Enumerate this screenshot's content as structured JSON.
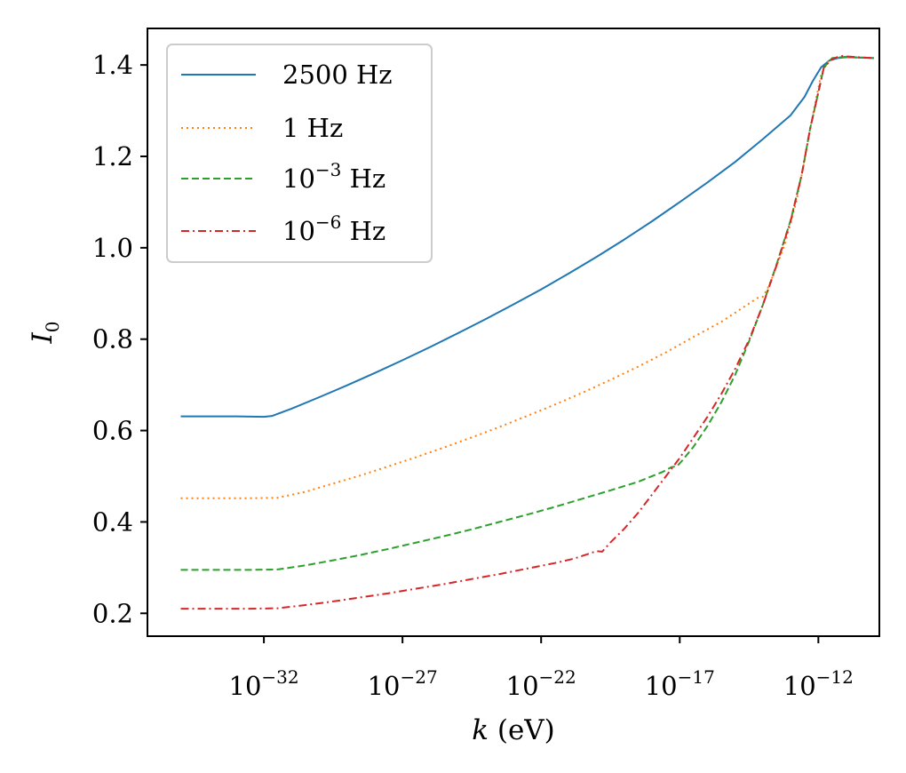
{
  "chart_data": {
    "type": "line",
    "title": "",
    "xlabel": "k (eV)",
    "ylabel": "I0",
    "xscale": "log",
    "x_exp_range": [
      -36.2,
      -9.8
    ],
    "ylim": [
      0.15,
      1.48
    ],
    "x_ticks": [
      {
        "exp": -32,
        "base": "10",
        "sup": "−32"
      },
      {
        "exp": -27,
        "base": "10",
        "sup": "−27"
      },
      {
        "exp": -22,
        "base": "10",
        "sup": "−22"
      },
      {
        "exp": -17,
        "base": "10",
        "sup": "−17"
      },
      {
        "exp": -12,
        "base": "10",
        "sup": "−12"
      }
    ],
    "y_ticks": [
      "0.2",
      "0.4",
      "0.6",
      "0.8",
      "1.0",
      "1.2",
      "1.4"
    ],
    "grid": false,
    "legend_position": "upper-left",
    "series": [
      {
        "name": "2500 Hz",
        "legend": {
          "base": "2500 Hz",
          "sup": "",
          "suffix": ""
        },
        "color": "#1f77b4",
        "dash": "solid",
        "points": [
          [
            -35,
            0.631
          ],
          [
            -33,
            0.631
          ],
          [
            -32,
            0.63
          ],
          [
            -31.7,
            0.632
          ],
          [
            -31,
            0.648
          ],
          [
            -30,
            0.673
          ],
          [
            -29,
            0.699
          ],
          [
            -28,
            0.726
          ],
          [
            -27,
            0.754
          ],
          [
            -26,
            0.783
          ],
          [
            -25,
            0.813
          ],
          [
            -24,
            0.844
          ],
          [
            -23,
            0.876
          ],
          [
            -22,
            0.909
          ],
          [
            -21,
            0.944
          ],
          [
            -20,
            0.98
          ],
          [
            -19,
            1.018
          ],
          [
            -18,
            1.058
          ],
          [
            -17,
            1.1
          ],
          [
            -16,
            1.143
          ],
          [
            -15,
            1.188
          ],
          [
            -14,
            1.238
          ],
          [
            -13,
            1.29
          ],
          [
            -12.5,
            1.33
          ],
          [
            -12.2,
            1.365
          ],
          [
            -11.9,
            1.395
          ],
          [
            -11.6,
            1.41
          ],
          [
            -11.3,
            1.415
          ],
          [
            -11,
            1.417
          ],
          [
            -10,
            1.415
          ]
        ]
      },
      {
        "name": "1 Hz",
        "legend": {
          "base": "1 Hz",
          "sup": "",
          "suffix": ""
        },
        "color": "#ff7f0e",
        "dash": "dotted",
        "points": [
          [
            -35,
            0.452
          ],
          [
            -32.5,
            0.452
          ],
          [
            -31.5,
            0.453
          ],
          [
            -30.5,
            0.466
          ],
          [
            -29.5,
            0.484
          ],
          [
            -28.5,
            0.502
          ],
          [
            -27.5,
            0.522
          ],
          [
            -26.5,
            0.542
          ],
          [
            -25.5,
            0.563
          ],
          [
            -24.5,
            0.585
          ],
          [
            -23.5,
            0.608
          ],
          [
            -22.5,
            0.632
          ],
          [
            -21.5,
            0.657
          ],
          [
            -20.5,
            0.683
          ],
          [
            -19.5,
            0.711
          ],
          [
            -18.5,
            0.74
          ],
          [
            -17.5,
            0.771
          ],
          [
            -16.5,
            0.805
          ],
          [
            -15.5,
            0.838
          ],
          [
            -15,
            0.858
          ],
          [
            -14.5,
            0.878
          ],
          [
            -14.2,
            0.89
          ],
          [
            -14.0,
            0.893
          ],
          [
            -13.8,
            0.915
          ],
          [
            -13.6,
            0.945
          ],
          [
            -13.2,
            1.01
          ],
          [
            -12.8,
            1.1
          ],
          [
            -12.5,
            1.19
          ],
          [
            -12.2,
            1.29
          ],
          [
            -11.9,
            1.38
          ],
          [
            -11.6,
            1.412
          ],
          [
            -11.2,
            1.418
          ],
          [
            -10.5,
            1.416
          ],
          [
            -10,
            1.415
          ]
        ]
      },
      {
        "name": "10^-3 Hz",
        "legend": {
          "base": "10",
          "sup": "−3",
          "suffix": " Hz"
        },
        "color": "#2ca02c",
        "dash": "dashed",
        "points": [
          [
            -35,
            0.295
          ],
          [
            -32.5,
            0.295
          ],
          [
            -31.5,
            0.296
          ],
          [
            -30.5,
            0.305
          ],
          [
            -29.5,
            0.316
          ],
          [
            -28.5,
            0.328
          ],
          [
            -27.5,
            0.341
          ],
          [
            -26.5,
            0.355
          ],
          [
            -25.5,
            0.369
          ],
          [
            -24.5,
            0.384
          ],
          [
            -23.5,
            0.4
          ],
          [
            -22.5,
            0.416
          ],
          [
            -21.5,
            0.433
          ],
          [
            -20.5,
            0.451
          ],
          [
            -19.5,
            0.469
          ],
          [
            -18.5,
            0.488
          ],
          [
            -17.6,
            0.51
          ],
          [
            -17.3,
            0.52
          ],
          [
            -17.1,
            0.522
          ],
          [
            -16.9,
            0.535
          ],
          [
            -16.5,
            0.565
          ],
          [
            -16,
            0.61
          ],
          [
            -15.5,
            0.662
          ],
          [
            -15,
            0.722
          ],
          [
            -14.5,
            0.795
          ],
          [
            -14,
            0.875
          ],
          [
            -13.5,
            0.965
          ],
          [
            -13,
            1.06
          ],
          [
            -12.6,
            1.16
          ],
          [
            -12.3,
            1.26
          ],
          [
            -12.0,
            1.34
          ],
          [
            -11.8,
            1.395
          ],
          [
            -11.5,
            1.415
          ],
          [
            -11,
            1.418
          ],
          [
            -10,
            1.415
          ]
        ]
      },
      {
        "name": "10^-6 Hz",
        "legend": {
          "base": "10",
          "sup": "−6",
          "suffix": " Hz"
        },
        "color": "#d62728",
        "dash": "dashdot",
        "points": [
          [
            -35,
            0.21
          ],
          [
            -32.5,
            0.21
          ],
          [
            -31.5,
            0.211
          ],
          [
            -30.5,
            0.218
          ],
          [
            -29.5,
            0.226
          ],
          [
            -28.5,
            0.235
          ],
          [
            -27.5,
            0.244
          ],
          [
            -26.5,
            0.254
          ],
          [
            -25.5,
            0.264
          ],
          [
            -24.5,
            0.275
          ],
          [
            -23.5,
            0.286
          ],
          [
            -22.5,
            0.298
          ],
          [
            -21.5,
            0.31
          ],
          [
            -20.8,
            0.32
          ],
          [
            -20.3,
            0.33
          ],
          [
            -20.0,
            0.336
          ],
          [
            -19.8,
            0.335
          ],
          [
            -19.5,
            0.355
          ],
          [
            -19,
            0.385
          ],
          [
            -18.5,
            0.42
          ],
          [
            -18,
            0.46
          ],
          [
            -17.5,
            0.5
          ],
          [
            -17,
            0.54
          ],
          [
            -16.5,
            0.585
          ],
          [
            -16,
            0.63
          ],
          [
            -15.5,
            0.68
          ],
          [
            -15,
            0.735
          ],
          [
            -14.5,
            0.798
          ],
          [
            -14,
            0.875
          ],
          [
            -13.5,
            0.963
          ],
          [
            -13,
            1.058
          ],
          [
            -12.6,
            1.16
          ],
          [
            -12.3,
            1.26
          ],
          [
            -12.0,
            1.34
          ],
          [
            -11.8,
            1.395
          ],
          [
            -11.5,
            1.413
          ],
          [
            -11.2,
            1.42
          ],
          [
            -10.8,
            1.418
          ],
          [
            -10,
            1.415
          ]
        ]
      }
    ]
  }
}
